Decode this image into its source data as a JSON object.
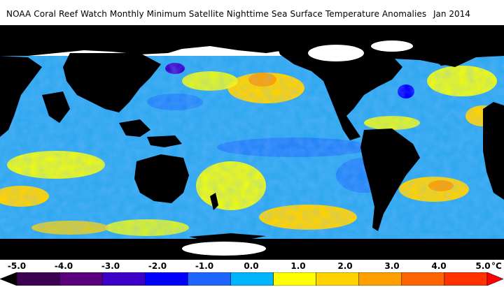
{
  "header": {
    "title": "NOAA Coral Reef Watch Monthly Minimum Satellite Nighttime Sea Surface Temperature Anomalies",
    "date": "Jan 2014"
  },
  "scale": {
    "ticks": [
      "-5.0",
      "-4.0",
      "-3.0",
      "-2.0",
      "-1.0",
      "0.0",
      "1.0",
      "2.0",
      "3.0",
      "4.0",
      "5.0"
    ],
    "unit": "°C",
    "range": [
      -5.0,
      5.0
    ],
    "colors": [
      "#000000",
      "#3c0050",
      "#5a007d",
      "#3c00c8",
      "#0000ff",
      "#1e64ff",
      "#00b4ff",
      "#ffff00",
      "#ffd200",
      "#ffa000",
      "#ff6400",
      "#ff3200",
      "#ff0000"
    ]
  },
  "map": {
    "ocean_base_color": "#2fa8f0",
    "land_color": "#000000",
    "ice_color": "#ffffff"
  }
}
